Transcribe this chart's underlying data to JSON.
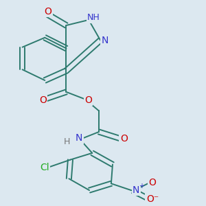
{
  "bg_color": "#dce8f0",
  "bond_color": "#2d7a6e",
  "bond_width": 1.4,
  "dbo": 0.012,
  "figsize": [
    3.0,
    3.0
  ],
  "dpi": 100,
  "xlim": [
    0.0,
    1.0
  ],
  "ylim": [
    0.0,
    1.0
  ],
  "label_fontsize": 10,
  "colors": {
    "O": "#cc0000",
    "N": "#3333cc",
    "H": "#777777",
    "Cl": "#22aa22",
    "C": "#2d7a6e",
    "bg": "#dce8f0"
  }
}
